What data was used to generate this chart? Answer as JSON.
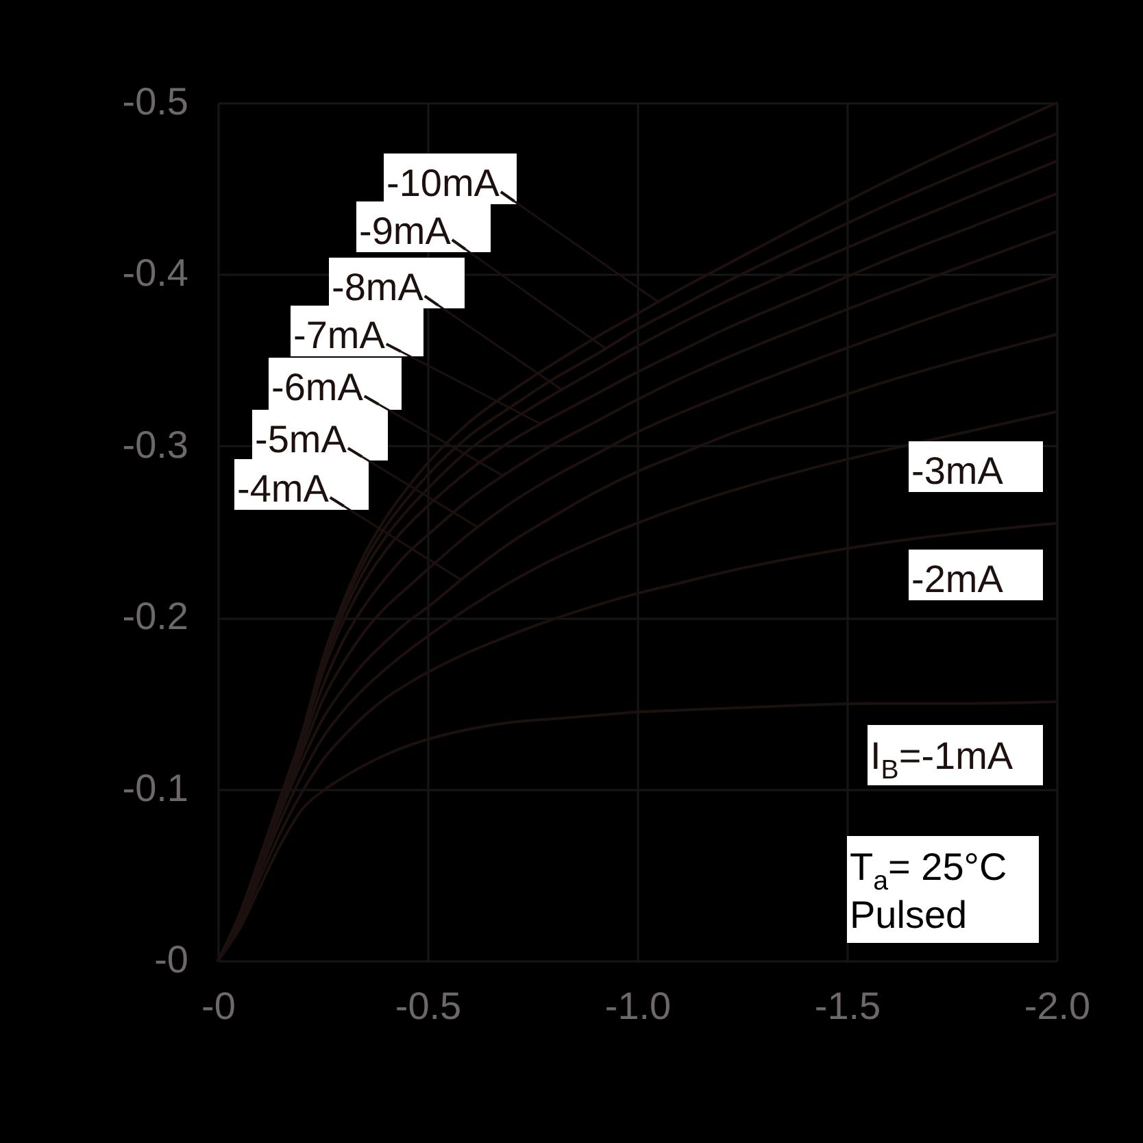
{
  "chart_data": {
    "type": "line",
    "x": [
      0,
      -0.05,
      -0.1,
      -0.15,
      -0.2,
      -0.25,
      -0.3,
      -0.35,
      -0.4,
      -0.45,
      -0.5,
      -0.6,
      -0.7,
      -0.8,
      -0.9,
      -1.0,
      -1.1,
      -1.2,
      -1.4,
      -1.6,
      -1.8,
      -2.0
    ],
    "xlim": [
      0,
      -2.0
    ],
    "ylim": [
      0,
      -0.5
    ],
    "xticks": [
      {
        "value": 0,
        "label": "-0"
      },
      -0.5,
      {
        "value": -1.0,
        "label": "-1.0"
      },
      -1.5,
      {
        "value": -2.0,
        "label": "-2.0"
      }
    ],
    "yticks": [
      {
        "value": 0,
        "label": "-0"
      },
      -0.1,
      -0.2,
      -0.3,
      -0.4,
      -0.5
    ],
    "grid": true,
    "legend": "top left",
    "marker": "none",
    "line_style": "solid",
    "series": [
      {
        "name": "I$_{B}$=-1mA",
        "color": "#1c110e",
        "values": [
          0,
          -0.018,
          -0.043,
          -0.068,
          -0.088,
          -0.099,
          -0.107,
          -0.114,
          -0.12,
          -0.125,
          -0.129,
          -0.135,
          -0.139,
          -0.141,
          -0.143,
          -0.145,
          -0.146,
          -0.147,
          -0.149,
          -0.15,
          -0.15,
          -0.151
        ]
      },
      {
        "name": "-2mA",
        "color": "#1c110e",
        "values": [
          0,
          -0.02,
          -0.048,
          -0.075,
          -0.098,
          -0.117,
          -0.131,
          -0.143,
          -0.153,
          -0.161,
          -0.168,
          -0.18,
          -0.19,
          -0.199,
          -0.207,
          -0.214,
          -0.22,
          -0.226,
          -0.236,
          -0.244,
          -0.25,
          -0.255
        ]
      },
      {
        "name": "-3mA",
        "color": "#1c110e",
        "values": [
          0,
          -0.022,
          -0.052,
          -0.082,
          -0.108,
          -0.13,
          -0.146,
          -0.159,
          -0.17,
          -0.18,
          -0.189,
          -0.206,
          -0.221,
          -0.234,
          -0.245,
          -0.255,
          -0.264,
          -0.272,
          -0.286,
          -0.298,
          -0.309,
          -0.32
        ]
      },
      {
        "name": "-4mA",
        "color": "#1c110e",
        "values": [
          0,
          -0.023,
          -0.055,
          -0.087,
          -0.116,
          -0.141,
          -0.159,
          -0.174,
          -0.186,
          -0.197,
          -0.206,
          -0.226,
          -0.244,
          -0.259,
          -0.273,
          -0.285,
          -0.295,
          -0.305,
          -0.322,
          -0.338,
          -0.352,
          -0.365
        ]
      },
      {
        "name": "-5mA",
        "color": "#1c110e",
        "values": [
          0,
          -0.024,
          -0.057,
          -0.09,
          -0.121,
          -0.152,
          -0.174,
          -0.192,
          -0.206,
          -0.217,
          -0.228,
          -0.249,
          -0.267,
          -0.282,
          -0.295,
          -0.308,
          -0.319,
          -0.329,
          -0.348,
          -0.366,
          -0.383,
          -0.399
        ]
      },
      {
        "name": "-6mA",
        "color": "#1c110e",
        "values": [
          0,
          -0.025,
          -0.058,
          -0.092,
          -0.125,
          -0.16,
          -0.187,
          -0.207,
          -0.223,
          -0.237,
          -0.248,
          -0.269,
          -0.286,
          -0.301,
          -0.314,
          -0.327,
          -0.339,
          -0.35,
          -0.37,
          -0.389,
          -0.407,
          -0.425
        ]
      },
      {
        "name": "-7mA",
        "color": "#1c110e",
        "values": [
          0,
          -0.025,
          -0.059,
          -0.094,
          -0.128,
          -0.168,
          -0.198,
          -0.221,
          -0.239,
          -0.253,
          -0.265,
          -0.286,
          -0.303,
          -0.317,
          -0.33,
          -0.343,
          -0.355,
          -0.367,
          -0.388,
          -0.409,
          -0.428,
          -0.447
        ]
      },
      {
        "name": "-8mA",
        "color": "#1c110e",
        "values": [
          0,
          -0.026,
          -0.06,
          -0.095,
          -0.13,
          -0.172,
          -0.203,
          -0.228,
          -0.247,
          -0.262,
          -0.275,
          -0.298,
          -0.315,
          -0.33,
          -0.344,
          -0.358,
          -0.371,
          -0.383,
          -0.405,
          -0.426,
          -0.446,
          -0.466
        ]
      },
      {
        "name": "-9mA",
        "color": "#1c110e",
        "values": [
          0,
          -0.026,
          -0.06,
          -0.096,
          -0.131,
          -0.174,
          -0.207,
          -0.233,
          -0.253,
          -0.269,
          -0.283,
          -0.306,
          -0.323,
          -0.339,
          -0.353,
          -0.368,
          -0.381,
          -0.394,
          -0.418,
          -0.441,
          -0.462,
          -0.482
        ]
      },
      {
        "name": "-10mA",
        "color": "#1c110e",
        "values": [
          0,
          -0.026,
          -0.06,
          -0.096,
          -0.132,
          -0.176,
          -0.21,
          -0.237,
          -0.258,
          -0.275,
          -0.29,
          -0.314,
          -0.332,
          -0.348,
          -0.363,
          -0.377,
          -0.391,
          -0.404,
          -0.43,
          -0.455,
          -0.478,
          -0.5
        ]
      }
    ],
    "annotations": [
      "T$_{a}$= 25°C",
      "Pulsed"
    ]
  }
}
